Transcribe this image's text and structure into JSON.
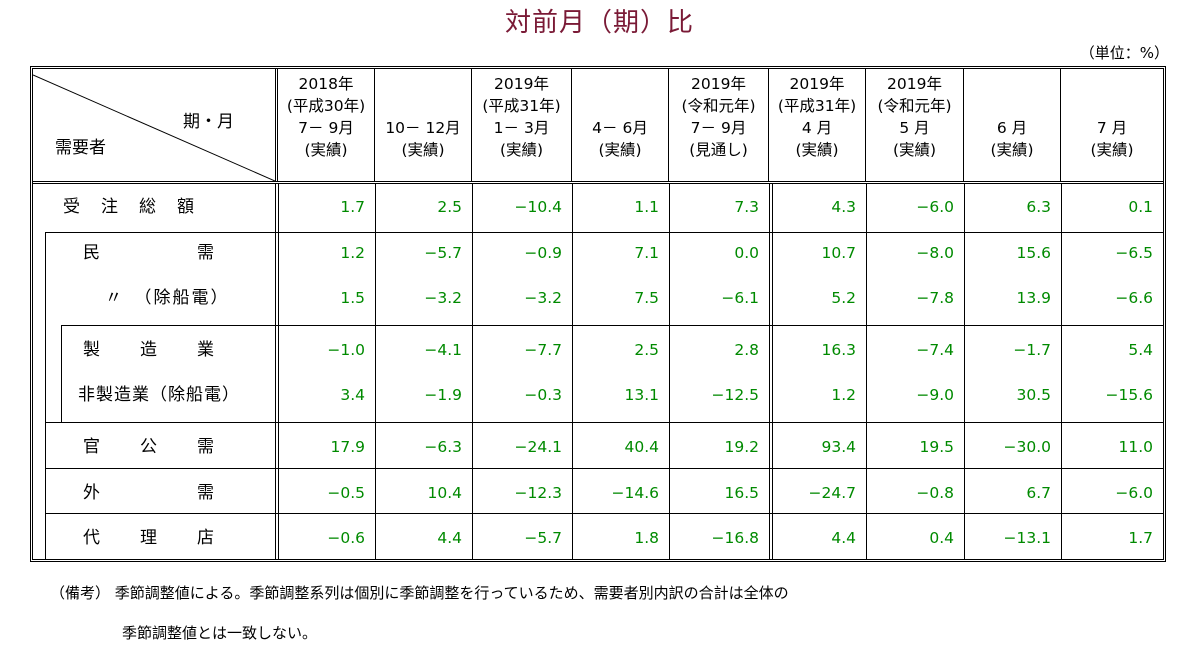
{
  "title": "対前月（期）比",
  "unit": "（単位：%）",
  "header": {
    "period_label": "期・月",
    "demand_label": "需要者",
    "columns": [
      {
        "l1": "2018年",
        "l2": "(平成30年)",
        "l3": "7－ 9月",
        "l4": "(実績)"
      },
      {
        "l1": "",
        "l2": "",
        "l3": "10－ 12月",
        "l4": "(実績)"
      },
      {
        "l1": "2019年",
        "l2": "(平成31年)",
        "l3": "1－ 3月",
        "l4": "(実績)"
      },
      {
        "l1": "",
        "l2": "",
        "l3": "4－ 6月",
        "l4": "(実績)"
      },
      {
        "l1": "2019年",
        "l2": "(令和元年)",
        "l3": "7－ 9月",
        "l4": "(見通し)"
      },
      {
        "l1": "2019年",
        "l2": "(平成31年)",
        "l3": "4 月",
        "l4": "(実績)"
      },
      {
        "l1": "2019年",
        "l2": "(令和元年)",
        "l3": "5 月",
        "l4": "(実績)"
      },
      {
        "l1": "",
        "l2": "",
        "l3": "6 月",
        "l4": "(実績)"
      },
      {
        "l1": "",
        "l2": "",
        "l3": "7 月",
        "l4": "(実績)"
      }
    ]
  },
  "rows": [
    {
      "label": "受　注　総　額",
      "values": [
        "1.7",
        "2.5",
        "−10.4",
        "1.1",
        "7.3",
        "4.3",
        "−6.0",
        "6.3",
        "0.1"
      ]
    },
    {
      "label": "民　　　　　需",
      "values": [
        "1.2",
        "−5.7",
        "−0.9",
        "7.1",
        "0.0",
        "10.7",
        "−8.0",
        "15.6",
        "−6.5"
      ]
    },
    {
      "label": "〃　（除船電）",
      "values": [
        "1.5",
        "−3.2",
        "−3.2",
        "7.5",
        "−6.1",
        "5.2",
        "−7.8",
        "13.9",
        "−6.6"
      ]
    },
    {
      "label": "製　　造　　業",
      "values": [
        "−1.0",
        "−4.1",
        "−7.7",
        "2.5",
        "2.8",
        "16.3",
        "−7.4",
        "−1.7",
        "5.4"
      ]
    },
    {
      "label": "非製造業（除船電）",
      "values": [
        "3.4",
        "−1.9",
        "−0.3",
        "13.1",
        "−12.5",
        "1.2",
        "−9.0",
        "30.5",
        "−15.6"
      ]
    },
    {
      "label": "官　　公　　需",
      "values": [
        "17.9",
        "−6.3",
        "−24.1",
        "40.4",
        "19.2",
        "93.4",
        "19.5",
        "−30.0",
        "11.0"
      ]
    },
    {
      "label": "外　　　　　需",
      "values": [
        "−0.5",
        "10.4",
        "−12.3",
        "−14.6",
        "16.5",
        "−24.7",
        "−0.8",
        "6.7",
        "−6.0"
      ]
    },
    {
      "label": "代　　理　　店",
      "values": [
        "−0.6",
        "4.4",
        "−5.7",
        "1.8",
        "−16.8",
        "4.4",
        "0.4",
        "−13.1",
        "1.7"
      ]
    }
  ],
  "notes": {
    "line1": "（備考） 季節調整値による。季節調整系列は個別に季節調整を行っているため、需要者別内訳の合計は全体の",
    "line2": "季節調整値とは一致しない。"
  },
  "colors": {
    "title": "#7a1a36",
    "values": "#008a00"
  }
}
